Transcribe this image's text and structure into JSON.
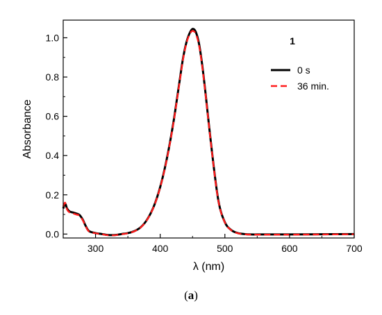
{
  "chart_data": {
    "type": "line",
    "xlabel": "λ (nm)",
    "ylabel": "Absorbance",
    "xlim": [
      250,
      700
    ],
    "ylim": [
      -0.02,
      1.09
    ],
    "xticks": [
      300,
      400,
      500,
      600,
      700
    ],
    "yticks": [
      0.0,
      0.2,
      0.4,
      0.6,
      0.8,
      1.0
    ],
    "xtick_labels": [
      "300",
      "400",
      "500",
      "600",
      "700"
    ],
    "ytick_labels": [
      "0.0",
      "0.2",
      "0.4",
      "0.6",
      "0.8",
      "1.0"
    ],
    "annotation": "1",
    "legend_position": "upper-right",
    "series": [
      {
        "name": "0 s",
        "color": "#000000",
        "dash": "solid",
        "x": [
          250,
          253,
          256,
          260,
          265,
          270,
          275,
          280,
          285,
          290,
          300,
          310,
          320,
          330,
          340,
          350,
          360,
          370,
          380,
          390,
          400,
          410,
          420,
          430,
          435,
          440,
          445,
          450,
          455,
          460,
          465,
          470,
          480,
          490,
          500,
          510,
          520,
          530,
          540,
          560,
          600,
          650,
          700
        ],
        "y": [
          0.13,
          0.155,
          0.13,
          0.115,
          0.11,
          0.105,
          0.098,
          0.075,
          0.04,
          0.015,
          0.005,
          0.0,
          -0.005,
          -0.005,
          0.0,
          0.005,
          0.015,
          0.035,
          0.075,
          0.14,
          0.24,
          0.38,
          0.56,
          0.78,
          0.89,
          0.97,
          1.02,
          1.045,
          1.03,
          0.97,
          0.86,
          0.72,
          0.42,
          0.17,
          0.06,
          0.02,
          0.005,
          0.0,
          -0.002,
          -0.002,
          -0.002,
          -0.001,
          0.0
        ]
      },
      {
        "name": "36 min.",
        "color": "#ff1a1a",
        "dash": "dashed",
        "x": [
          250,
          253,
          256,
          260,
          265,
          270,
          275,
          280,
          285,
          290,
          300,
          310,
          320,
          330,
          340,
          350,
          360,
          370,
          380,
          390,
          400,
          410,
          420,
          430,
          435,
          440,
          445,
          450,
          455,
          460,
          465,
          470,
          480,
          490,
          500,
          510,
          520,
          530,
          540,
          560,
          600,
          650,
          700
        ],
        "y": [
          0.14,
          0.16,
          0.125,
          0.11,
          0.105,
          0.1,
          0.094,
          0.072,
          0.038,
          0.013,
          0.004,
          -0.001,
          -0.006,
          -0.006,
          -0.001,
          0.004,
          0.014,
          0.034,
          0.074,
          0.139,
          0.238,
          0.377,
          0.556,
          0.775,
          0.885,
          0.965,
          1.015,
          1.035,
          1.02,
          0.962,
          0.853,
          0.715,
          0.417,
          0.168,
          0.059,
          0.019,
          0.004,
          -0.001,
          -0.003,
          -0.003,
          -0.003,
          -0.002,
          -0.001
        ]
      }
    ]
  },
  "caption": {
    "open": "(",
    "letter": "a",
    "close": ")"
  }
}
